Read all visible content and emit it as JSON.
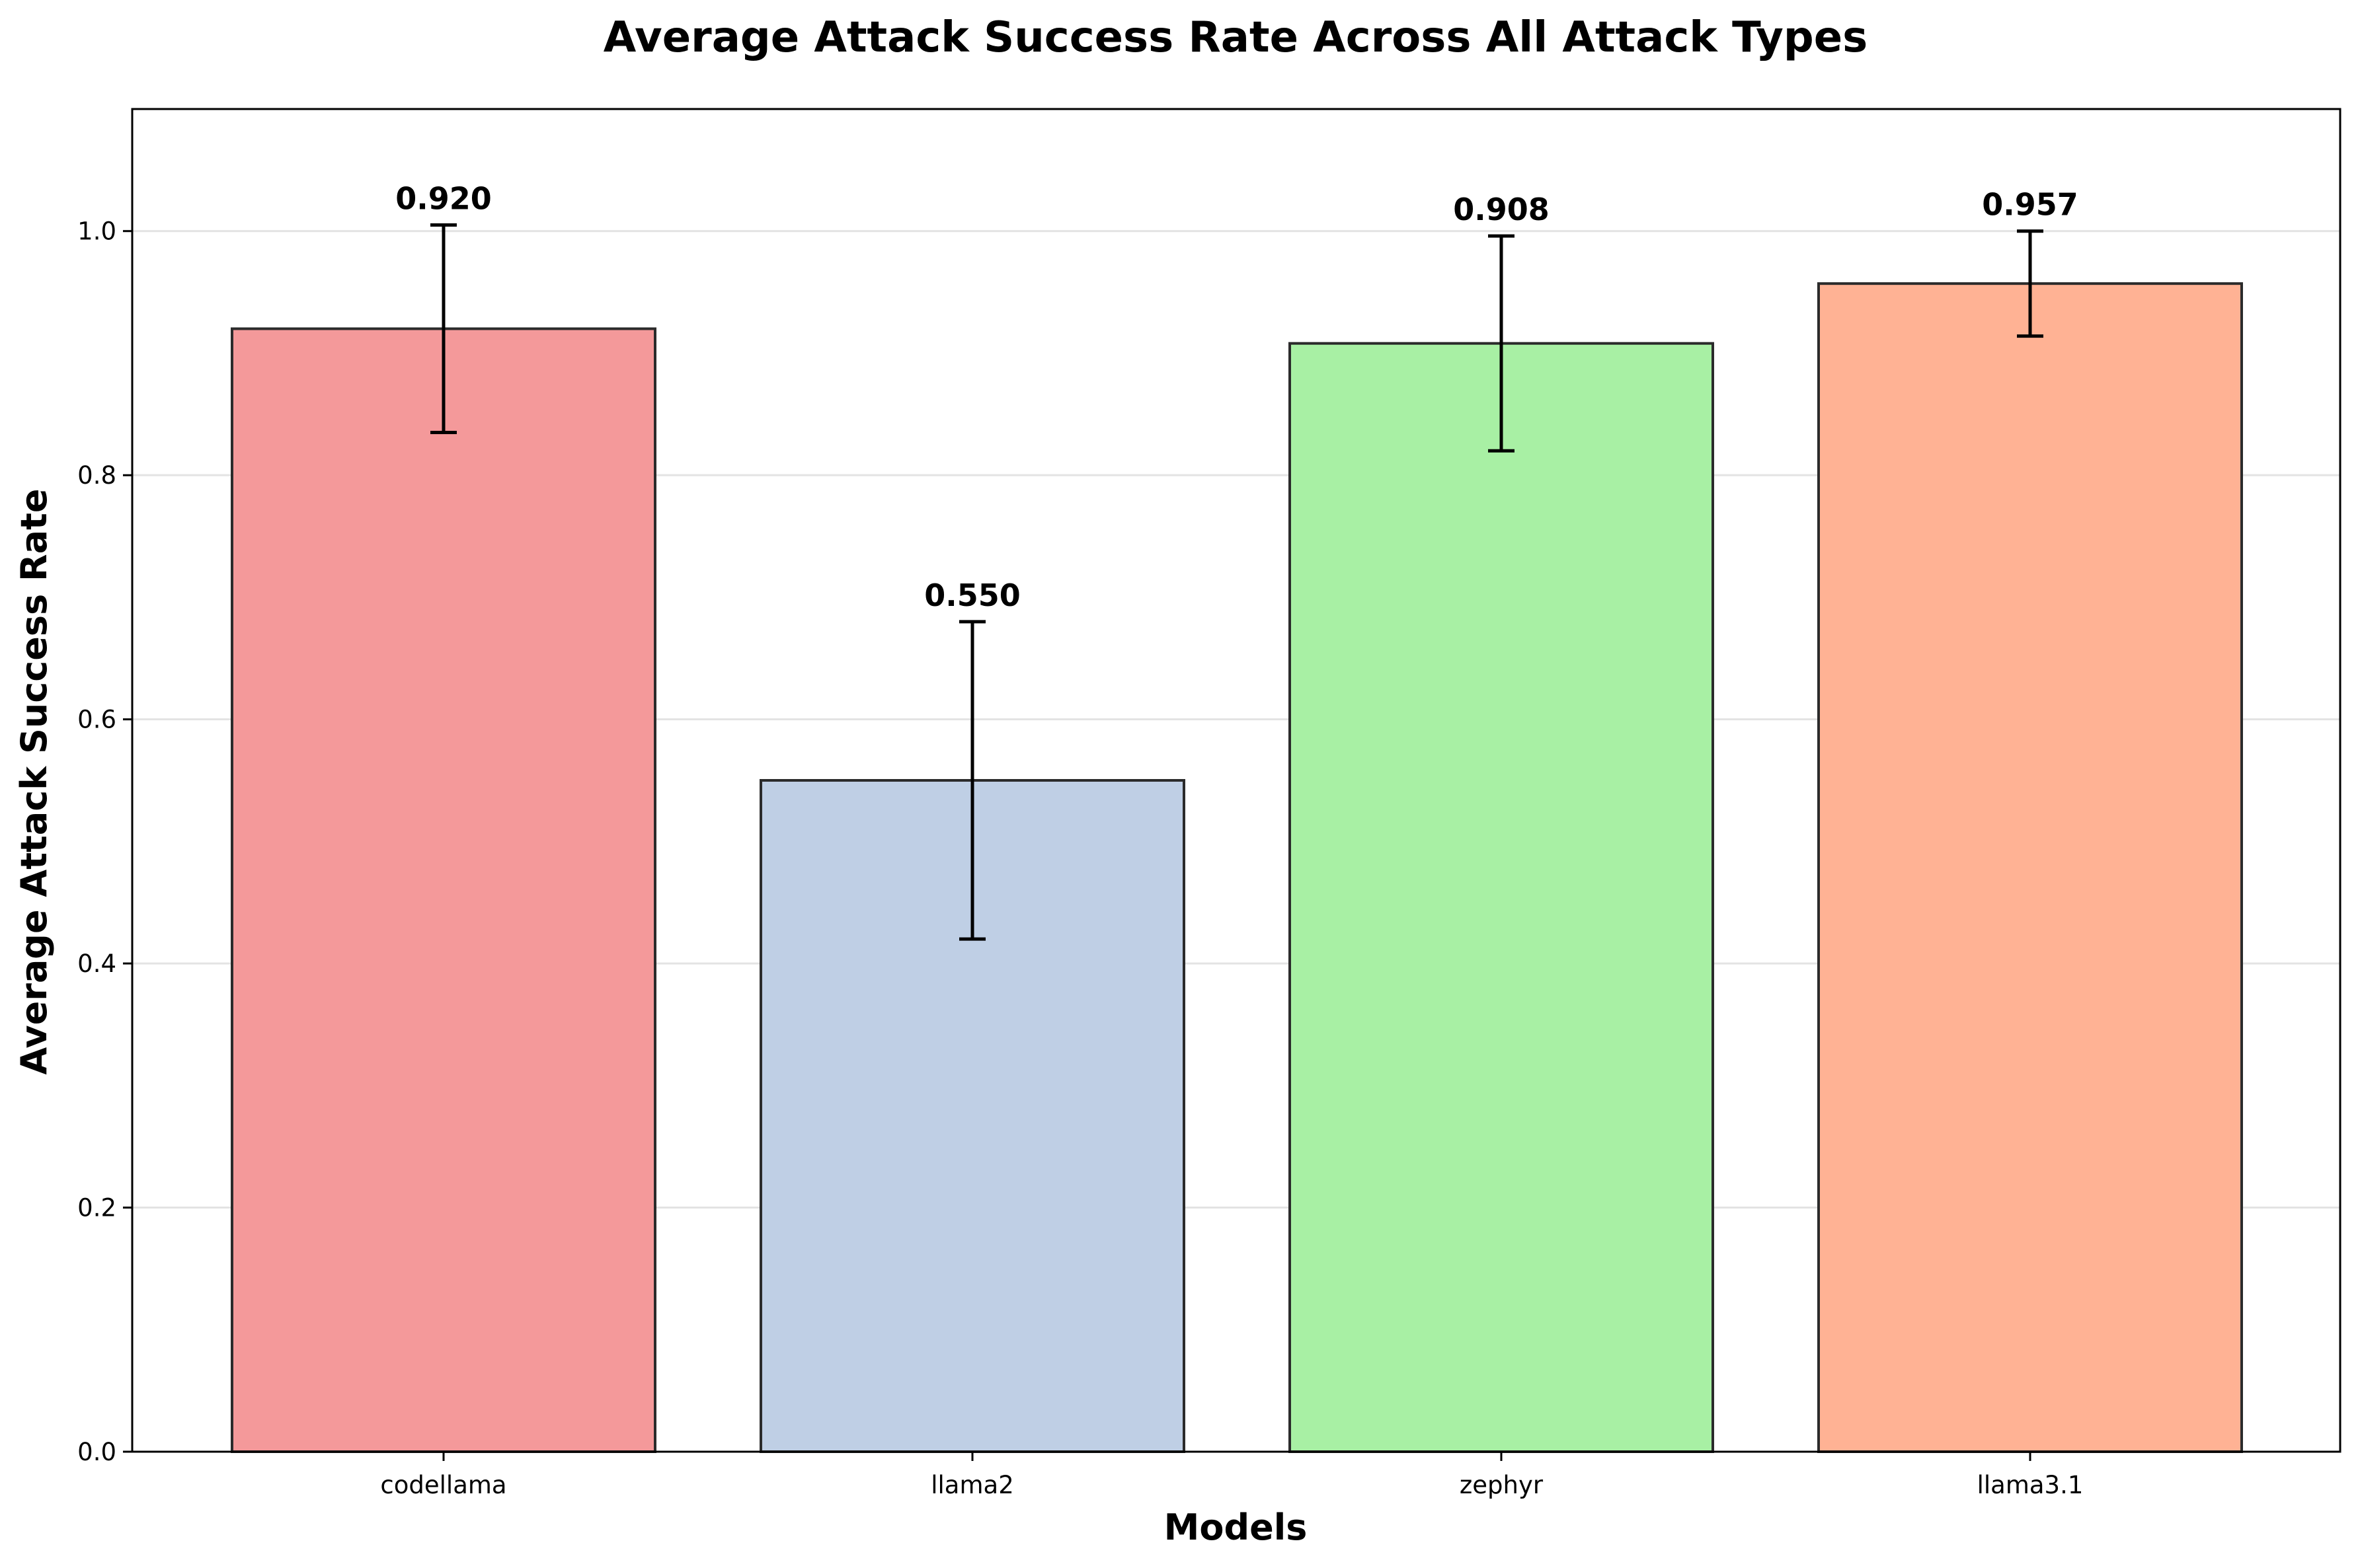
{
  "chart_data": {
    "type": "bar",
    "title": "Average Attack Success Rate Across All Attack Types",
    "xlabel": "Models",
    "ylabel": "Average Attack Success Rate",
    "categories": [
      "codellama",
      "llama2",
      "zephyr",
      "llama3.1"
    ],
    "values": [
      0.92,
      0.55,
      0.908,
      0.957
    ],
    "value_labels": [
      "0.920",
      "0.550",
      "0.908",
      "0.957"
    ],
    "error_low": [
      0.835,
      0.42,
      0.82,
      0.914
    ],
    "error_high": [
      1.005,
      0.68,
      0.996,
      1.0
    ],
    "colors": [
      "#f4999a",
      "#bfcfe5",
      "#a8f0a4",
      "#ffb294"
    ],
    "ylim": [
      0,
      1.1
    ],
    "yticks": [
      0.0,
      0.2,
      0.4,
      0.6,
      0.8,
      1.0
    ],
    "ytick_labels": [
      "0.0",
      "0.2",
      "0.4",
      "0.6",
      "0.8",
      "1.0"
    ],
    "grid": "horizontal",
    "legend": "none"
  }
}
